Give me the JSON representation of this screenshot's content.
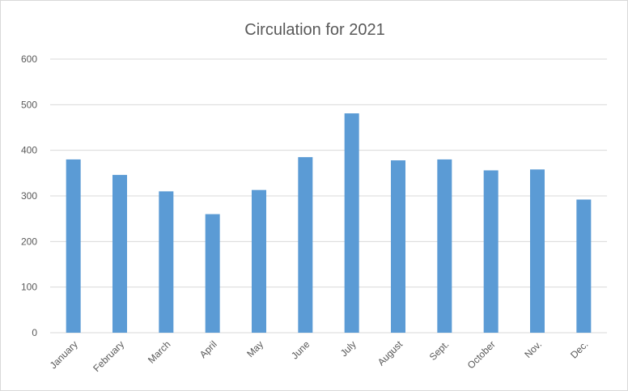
{
  "chart_data": {
    "type": "bar",
    "title": "Circulation for 2021",
    "xlabel": "",
    "ylabel": "",
    "categories": [
      "January",
      "February",
      "March",
      "April",
      "May",
      "June",
      "July",
      "August",
      "Sept.",
      "October",
      "Nov.",
      "Dec."
    ],
    "values": [
      380,
      346,
      310,
      260,
      313,
      385,
      481,
      378,
      380,
      356,
      358,
      292
    ],
    "ylim": [
      0,
      600
    ],
    "yticks": [
      "0",
      "100",
      "200",
      "300",
      "400",
      "500",
      "600"
    ],
    "grid": true,
    "legend": "none",
    "colors": {
      "bar": "#5b9bd5",
      "grid": "#d9d9d9",
      "text": "#595959"
    }
  }
}
